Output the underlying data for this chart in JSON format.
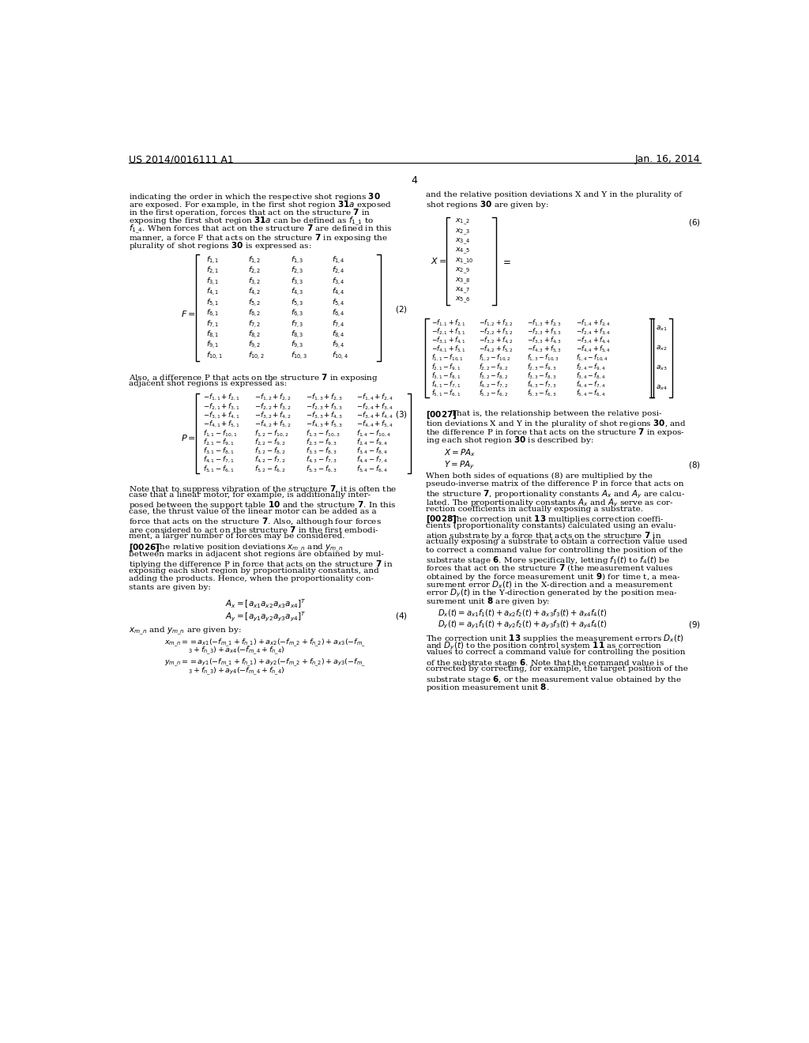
{
  "bg_color": "#ffffff",
  "header_left": "US 2014/0016111 A1",
  "header_right": "Jan. 16, 2014",
  "page_number": "4"
}
